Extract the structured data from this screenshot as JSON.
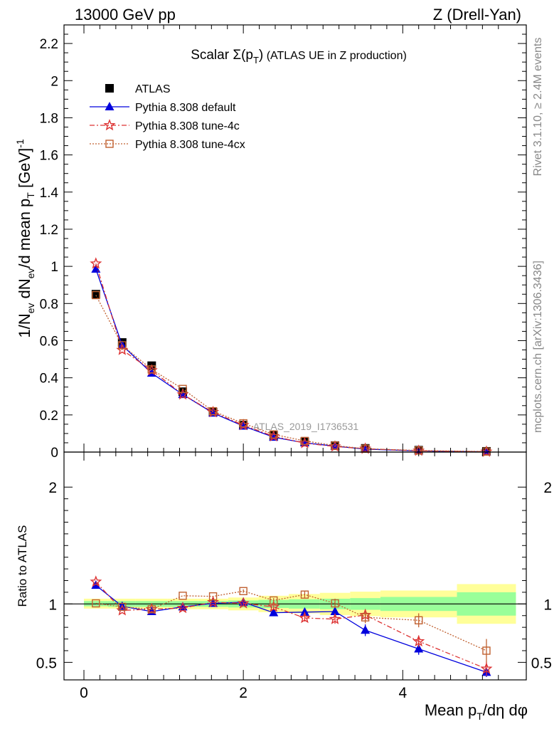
{
  "header": {
    "energy_label": "13000 GeV pp",
    "process_label": "Z (Drell-Yan)"
  },
  "side": {
    "rivet_label": "Rivet 3.1.10, ≥ 2.4M events",
    "mcplots_label": "mcplots.cern.ch [arXiv:1306.3436]"
  },
  "colors": {
    "atlas": "#000000",
    "default": "#0000dd",
    "tune4c": "#dd3333",
    "tune4cx": "#c06030",
    "band_green": "#99ff99",
    "band_yellow": "#ffff99"
  },
  "chart_data": [
    {
      "type": "line",
      "panel": "main",
      "title": "Scalar Σ(p_T) (ATLAS UE in Z production)",
      "title_main": "Scalar ",
      "title_sigma": "Σ(p",
      "title_sub": "T",
      "title_close": ")",
      "title_rest": " (ATLAS UE in Z production)",
      "ylabel": "1/N_ev dN_ev/d mean p_T [GeV]^-1",
      "ylabel_parts": {
        "a": "1/N",
        "b": "ev",
        "c": " dN",
        "d": "ev",
        "e": "/d mean p",
        "f": "T",
        "g": " [GeV]",
        "h": "-1"
      },
      "watermark": "ATLAS_2019_I1736531",
      "xlim": [
        -0.25,
        5.55
      ],
      "ylim": [
        0,
        2.3
      ],
      "yticks": [
        0,
        0.2,
        0.4,
        0.6,
        0.8,
        1,
        1.2,
        1.4,
        1.6,
        1.8,
        2,
        2.2
      ],
      "ytick_labels": [
        "0",
        "0.2",
        "0.4",
        "0.6",
        "0.8",
        "1",
        "1.2",
        "1.4",
        "1.6",
        "1.8",
        "2",
        "2.2"
      ],
      "x": [
        0.15,
        0.48,
        0.85,
        1.24,
        1.62,
        2.0,
        2.38,
        2.77,
        3.15,
        3.53,
        4.2,
        5.05
      ],
      "legend": [
        {
          "label": "ATLAS",
          "key": "atlas"
        },
        {
          "label": "Pythia 8.308 default",
          "key": "default"
        },
        {
          "label": "Pythia 8.308 tune-4c",
          "key": "tune4c"
        },
        {
          "label": "Pythia 8.308 tune-4cx",
          "key": "tune4cx"
        }
      ],
      "series": [
        {
          "name": "ATLAS",
          "key": "atlas",
          "values": [
            0.85,
            0.59,
            0.465,
            0.325,
            0.215,
            0.145,
            0.09,
            0.055,
            0.035,
            0.02,
            0.01,
            0.004
          ]
        },
        {
          "name": "Pythia 8.308 default",
          "key": "default",
          "values": [
            0.985,
            0.575,
            0.425,
            0.31,
            0.21,
            0.14,
            0.08,
            0.05,
            0.032,
            0.016,
            0.006,
            0.0015
          ]
        },
        {
          "name": "Pythia 8.308 tune-4c",
          "key": "tune4c",
          "values": [
            1.015,
            0.55,
            0.44,
            0.31,
            0.215,
            0.145,
            0.085,
            0.048,
            0.03,
            0.018,
            0.007,
            0.0018
          ]
        },
        {
          "name": "Pythia 8.308 tune-4cx",
          "key": "tune4cx",
          "values": [
            0.845,
            0.575,
            0.445,
            0.34,
            0.22,
            0.155,
            0.095,
            0.06,
            0.035,
            0.018,
            0.0085,
            0.0025
          ]
        }
      ]
    },
    {
      "type": "line",
      "panel": "ratio",
      "ylabel": "Ratio to ATLAS",
      "xlabel": "Mean p_T/dη dφ",
      "xlabel_parts": {
        "a": "Mean p",
        "b": "T",
        "c": "/dη dφ"
      },
      "xlim": [
        -0.25,
        5.55
      ],
      "ylim": [
        0.35,
        2.3
      ],
      "yticks": [
        0.5,
        1,
        2
      ],
      "ytick_labels": [
        "0.5",
        "1",
        "2"
      ],
      "xticks": [
        0,
        2,
        4
      ],
      "xtick_labels": [
        "0",
        "2",
        "4"
      ],
      "reference_line": 1,
      "x": [
        0.15,
        0.48,
        0.85,
        1.24,
        1.62,
        2.0,
        2.38,
        2.77,
        3.15,
        3.53,
        4.2,
        5.05
      ],
      "band_edges": [
        0.0,
        0.3,
        0.65,
        1.05,
        1.43,
        1.81,
        2.19,
        2.57,
        2.96,
        3.34,
        3.72,
        4.68,
        5.42
      ],
      "band_green": [
        [
          0.98,
          1.025
        ],
        [
          0.975,
          1.025
        ],
        [
          0.975,
          1.025
        ],
        [
          0.975,
          1.025
        ],
        [
          0.975,
          1.025
        ],
        [
          0.97,
          1.03
        ],
        [
          0.965,
          1.035
        ],
        [
          0.96,
          1.04
        ],
        [
          0.955,
          1.045
        ],
        [
          0.95,
          1.05
        ],
        [
          0.94,
          1.06
        ],
        [
          0.9,
          1.1
        ]
      ],
      "band_yellow": [
        [
          0.96,
          1.045
        ],
        [
          0.96,
          1.045
        ],
        [
          0.96,
          1.045
        ],
        [
          0.955,
          1.045
        ],
        [
          0.955,
          1.045
        ],
        [
          0.945,
          1.055
        ],
        [
          0.93,
          1.07
        ],
        [
          0.92,
          1.085
        ],
        [
          0.905,
          1.095
        ],
        [
          0.895,
          1.105
        ],
        [
          0.885,
          1.115
        ],
        [
          0.83,
          1.17
        ]
      ],
      "series": [
        {
          "name": "Pythia 8.308 default",
          "key": "default",
          "values": [
            1.16,
            0.98,
            0.935,
            0.975,
            1.005,
            1.015,
            0.925,
            0.93,
            0.935,
            0.775,
            0.615,
            0.415
          ],
          "errors": [
            0.01,
            0.01,
            0.01,
            0.01,
            0.01,
            0.015,
            0.02,
            0.03,
            0.04,
            0.05,
            0.05,
            0.04
          ]
        },
        {
          "name": "Pythia 8.308 tune-4c",
          "key": "tune4c",
          "values": [
            1.19,
            0.945,
            0.955,
            0.965,
            1.015,
            1.005,
            0.975,
            0.88,
            0.87,
            0.905,
            0.68,
            0.445
          ],
          "errors": [
            0.01,
            0.01,
            0.01,
            0.01,
            0.01,
            0.015,
            0.02,
            0.03,
            0.04,
            0.05,
            0.05,
            0.06
          ]
        },
        {
          "name": "Pythia 8.308 tune-4cx",
          "key": "tune4cx",
          "values": [
            1.005,
            0.975,
            0.955,
            1.07,
            1.065,
            1.11,
            1.03,
            1.08,
            1.005,
            0.885,
            0.86,
            0.6
          ],
          "errors": [
            0.01,
            0.01,
            0.01,
            0.01,
            0.01,
            0.015,
            0.02,
            0.03,
            0.04,
            0.05,
            0.06,
            0.1
          ]
        }
      ]
    }
  ]
}
